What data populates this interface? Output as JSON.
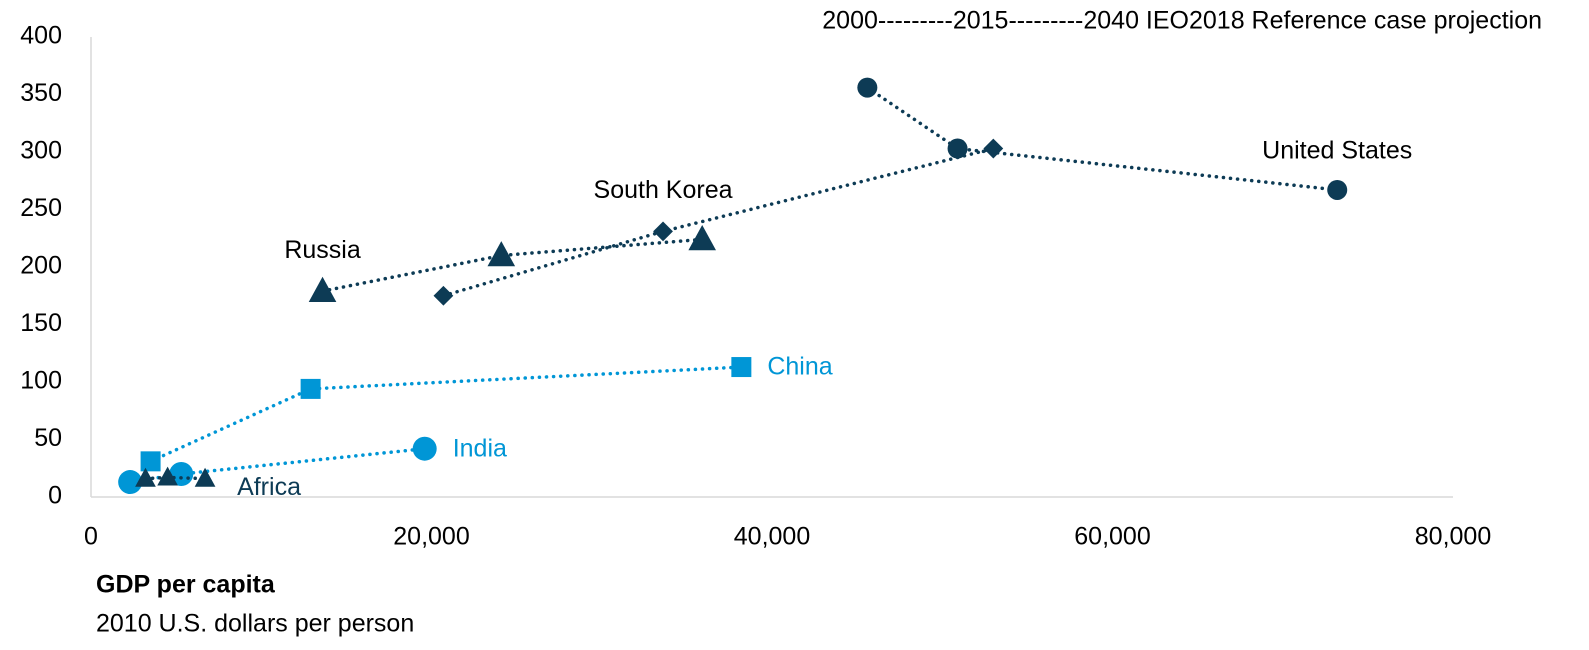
{
  "chart_data": {
    "type": "scatter",
    "annotation": "2000---------2015---------2040 IEO2018 Reference case projection",
    "x_label": "GDP per capita",
    "x_sublabel": "2010 U.S. dollars per person",
    "xlim": [
      0,
      80000
    ],
    "ylim": [
      0,
      400
    ],
    "xticks": [
      0,
      {
        "value": 20000,
        "label": "20,000"
      },
      {
        "value": 40000,
        "label": "40,000"
      },
      {
        "value": 60000,
        "label": "60,000"
      },
      {
        "value": 80000,
        "label": "80,000"
      }
    ],
    "yticks": [
      0,
      50,
      100,
      150,
      200,
      250,
      300,
      350,
      400
    ],
    "grid": false,
    "series": [
      {
        "name": "United States",
        "color": "#0d3b55",
        "marker": "circle",
        "x": [
          45600,
          50900,
          73200
        ],
        "values": [
          356,
          303,
          267
        ]
      },
      {
        "name": "South Korea",
        "color": "#0d3b55",
        "marker": "diamond",
        "x": [
          20700,
          33600,
          53000
        ],
        "values": [
          175,
          231,
          303
        ]
      },
      {
        "name": "Russia",
        "color": "#0d3b55",
        "marker": "triangle",
        "x": [
          13600,
          24100,
          35900
        ],
        "values": [
          179,
          210,
          224
        ]
      },
      {
        "name": "China",
        "color": "#0096d6",
        "marker": "square",
        "x": [
          3500,
          12900,
          38200
        ],
        "values": [
          31,
          94,
          113
        ]
      },
      {
        "name": "India",
        "color": "#0096d6",
        "marker": "circle",
        "x": [
          2300,
          5300,
          19600
        ],
        "values": [
          13,
          20,
          42
        ]
      },
      {
        "name": "Africa",
        "color": "#0d3b55",
        "marker": "triangle",
        "x": [
          3200,
          4500,
          6700
        ],
        "values": [
          16,
          17,
          16
        ]
      }
    ]
  }
}
